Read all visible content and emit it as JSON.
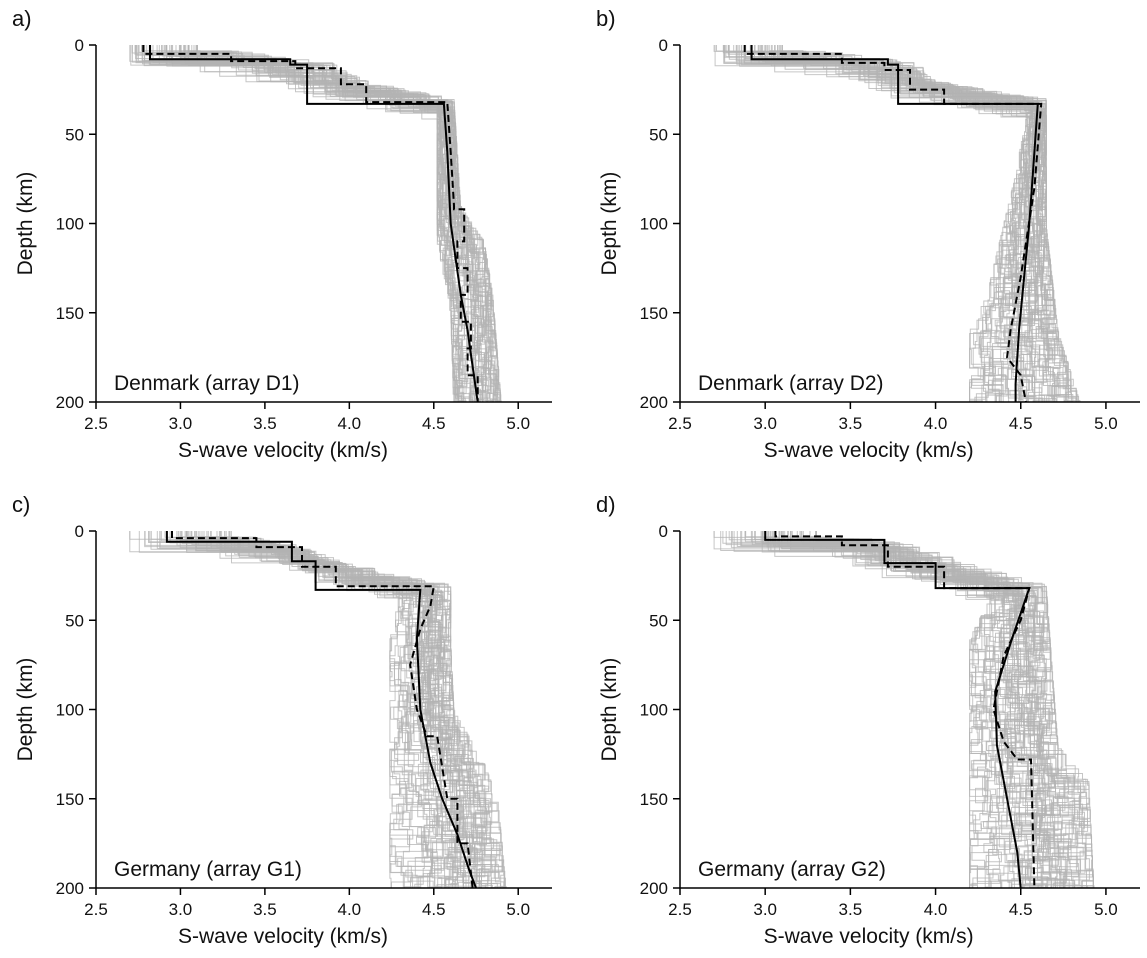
{
  "chart_data": [
    {
      "type": "line",
      "panel_label": "a)",
      "annotation": "Denmark (array D1)",
      "xlabel": "S-wave velocity (km/s)",
      "ylabel": "Depth (km)",
      "xlim": [
        2.5,
        5.2
      ],
      "ylim": [
        200,
        0
      ],
      "xticks": [
        "2.5",
        "3.0",
        "3.5",
        "4.0",
        "4.5",
        "5.0"
      ],
      "yticks": [
        "0",
        "50",
        "100",
        "150",
        "200"
      ],
      "ensemble_color": "#b3b3b3",
      "ensemble_vmin": [
        [
          0,
          2.7
        ],
        [
          10,
          3.5
        ],
        [
          20,
          3.8
        ],
        [
          32,
          4.52
        ],
        [
          100,
          4.52
        ],
        [
          140,
          4.6
        ],
        [
          200,
          4.62
        ]
      ],
      "ensemble_vmax": [
        [
          0,
          3.1
        ],
        [
          10,
          3.9
        ],
        [
          20,
          4.1
        ],
        [
          30,
          4.62
        ],
        [
          90,
          4.66
        ],
        [
          110,
          4.8
        ],
        [
          140,
          4.85
        ],
        [
          200,
          4.9
        ]
      ],
      "series": [
        {
          "style": "solid",
          "color": "#000000",
          "depth": [
            0,
            8,
            8,
            11,
            11,
            33,
            33,
            60,
            100,
            120,
            140,
            160,
            180,
            200
          ],
          "velocity": [
            2.82,
            2.82,
            3.65,
            3.65,
            3.75,
            3.75,
            4.56,
            4.58,
            4.6,
            4.63,
            4.66,
            4.7,
            4.73,
            4.76
          ]
        },
        {
          "style": "dashed",
          "color": "#000000",
          "depth": [
            0,
            5,
            5,
            9,
            9,
            13,
            13,
            22,
            22,
            32,
            32,
            60,
            90,
            92,
            92,
            110,
            110,
            125,
            125,
            140,
            140,
            155,
            155,
            170,
            170,
            185,
            185,
            200
          ],
          "velocity": [
            2.78,
            2.78,
            3.3,
            3.3,
            3.68,
            3.68,
            3.95,
            3.95,
            4.1,
            4.1,
            4.58,
            4.6,
            4.62,
            4.62,
            4.68,
            4.68,
            4.64,
            4.64,
            4.7,
            4.7,
            4.66,
            4.66,
            4.72,
            4.72,
            4.7,
            4.7,
            4.76,
            4.76
          ]
        }
      ]
    },
    {
      "type": "line",
      "panel_label": "b)",
      "annotation": "Denmark (array D2)",
      "xlabel": "S-wave velocity (km/s)",
      "ylabel": "Depth (km)",
      "xlim": [
        2.5,
        5.2
      ],
      "ylim": [
        200,
        0
      ],
      "xticks": [
        "2.5",
        "3.0",
        "3.5",
        "4.0",
        "4.5",
        "5.0"
      ],
      "yticks": [
        "0",
        "50",
        "100",
        "150",
        "200"
      ],
      "ensemble_color": "#b3b3b3",
      "ensemble_vmin": [
        [
          0,
          2.7
        ],
        [
          10,
          3.5
        ],
        [
          20,
          3.8
        ],
        [
          32,
          4.55
        ],
        [
          80,
          4.45
        ],
        [
          140,
          4.3
        ],
        [
          160,
          4.2
        ],
        [
          200,
          4.2
        ]
      ],
      "ensemble_vmax": [
        [
          0,
          3.1
        ],
        [
          10,
          3.9
        ],
        [
          20,
          4.0
        ],
        [
          30,
          4.65
        ],
        [
          100,
          4.65
        ],
        [
          160,
          4.72
        ],
        [
          200,
          4.85
        ]
      ],
      "series": [
        {
          "style": "solid",
          "color": "#000000",
          "depth": [
            0,
            8,
            8,
            11,
            11,
            33,
            33,
            60,
            100,
            130,
            160,
            190,
            200
          ],
          "velocity": [
            2.92,
            2.92,
            3.72,
            3.72,
            3.78,
            3.78,
            4.6,
            4.58,
            4.55,
            4.52,
            4.49,
            4.47,
            4.47
          ]
        },
        {
          "style": "dashed",
          "color": "#000000",
          "depth": [
            0,
            5,
            5,
            10,
            10,
            14,
            14,
            25,
            25,
            33,
            33,
            80,
            130,
            160,
            175,
            185,
            200
          ],
          "velocity": [
            2.88,
            2.88,
            3.45,
            3.45,
            3.7,
            3.7,
            3.85,
            3.85,
            4.05,
            4.05,
            4.62,
            4.58,
            4.5,
            4.44,
            4.42,
            4.5,
            4.53
          ]
        }
      ]
    },
    {
      "type": "line",
      "panel_label": "c)",
      "annotation": "Germany (array G1)",
      "xlabel": "S-wave velocity (km/s)",
      "ylabel": "Depth (km)",
      "xlim": [
        2.5,
        5.2
      ],
      "ylim": [
        200,
        0
      ],
      "xticks": [
        "2.5",
        "3.0",
        "3.5",
        "4.0",
        "4.5",
        "5.0"
      ],
      "yticks": [
        "0",
        "50",
        "100",
        "150",
        "200"
      ],
      "ensemble_color": "#b3b3b3",
      "ensemble_vmin": [
        [
          0,
          2.7
        ],
        [
          8,
          3.5
        ],
        [
          18,
          3.8
        ],
        [
          32,
          4.3
        ],
        [
          60,
          4.24
        ],
        [
          200,
          4.24
        ]
      ],
      "ensemble_vmax": [
        [
          0,
          3.3
        ],
        [
          8,
          3.7
        ],
        [
          18,
          4.0
        ],
        [
          30,
          4.6
        ],
        [
          60,
          4.6
        ],
        [
          100,
          4.62
        ],
        [
          130,
          4.8
        ],
        [
          150,
          4.88
        ],
        [
          200,
          4.93
        ]
      ],
      "series": [
        {
          "style": "solid",
          "color": "#000000",
          "depth": [
            0,
            6,
            6,
            17,
            17,
            33,
            33,
            60,
            100,
            130,
            150,
            170,
            190,
            200
          ],
          "velocity": [
            2.92,
            2.92,
            3.66,
            3.66,
            3.8,
            3.8,
            4.42,
            4.4,
            4.42,
            4.48,
            4.55,
            4.64,
            4.71,
            4.75
          ]
        },
        {
          "style": "dashed",
          "color": "#000000",
          "depth": [
            0,
            4,
            4,
            9,
            9,
            20,
            20,
            31,
            31,
            42,
            55,
            75,
            100,
            115,
            115,
            150,
            150,
            175,
            175,
            200
          ],
          "velocity": [
            2.95,
            2.95,
            3.45,
            3.45,
            3.72,
            3.72,
            3.92,
            3.92,
            4.5,
            4.48,
            4.42,
            4.36,
            4.4,
            4.46,
            4.52,
            4.58,
            4.64,
            4.64,
            4.7,
            4.73
          ]
        }
      ]
    },
    {
      "type": "line",
      "panel_label": "d)",
      "annotation": "Germany (array G2)",
      "xlabel": "S-wave velocity (km/s)",
      "ylabel": "Depth (km)",
      "xlim": [
        2.5,
        5.2
      ],
      "ylim": [
        200,
        0
      ],
      "xticks": [
        "2.5",
        "3.0",
        "3.5",
        "4.0",
        "4.5",
        "5.0"
      ],
      "yticks": [
        "0",
        "50",
        "100",
        "150",
        "200"
      ],
      "ensemble_color": "#b3b3b3",
      "ensemble_vmin": [
        [
          0,
          2.7
        ],
        [
          8,
          3.5
        ],
        [
          18,
          3.8
        ],
        [
          32,
          4.35
        ],
        [
          60,
          4.2
        ],
        [
          200,
          4.2
        ]
      ],
      "ensemble_vmax": [
        [
          0,
          3.3
        ],
        [
          8,
          3.9
        ],
        [
          18,
          4.2
        ],
        [
          30,
          4.65
        ],
        [
          70,
          4.68
        ],
        [
          120,
          4.72
        ],
        [
          140,
          4.9
        ],
        [
          200,
          4.93
        ]
      ],
      "series": [
        {
          "style": "solid",
          "color": "#000000",
          "depth": [
            0,
            5,
            5,
            18,
            18,
            32,
            32,
            60,
            90,
            120,
            150,
            180,
            200
          ],
          "velocity": [
            3.0,
            3.0,
            3.7,
            3.7,
            4.0,
            4.0,
            4.55,
            4.45,
            4.35,
            4.36,
            4.42,
            4.48,
            4.5
          ]
        },
        {
          "style": "dashed",
          "color": "#000000",
          "depth": [
            0,
            3,
            3,
            8,
            8,
            20,
            20,
            32,
            32,
            50,
            70,
            100,
            118,
            128,
            128,
            200
          ],
          "velocity": [
            3.06,
            3.06,
            3.45,
            3.45,
            3.72,
            3.72,
            4.05,
            4.05,
            4.55,
            4.5,
            4.4,
            4.34,
            4.4,
            4.48,
            4.56,
            4.58
          ]
        }
      ]
    }
  ]
}
